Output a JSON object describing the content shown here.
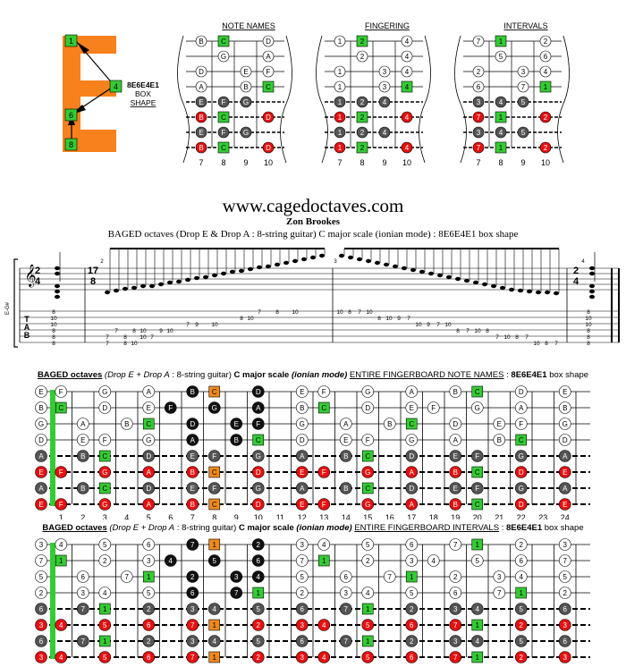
{
  "shape_labels": {
    "name": "8E6E4E1",
    "line2": "BOX",
    "line3": "SHAPE",
    "nodes": [
      "1",
      "4",
      "6",
      "8"
    ]
  },
  "diagram_titles": {
    "notes": "NOTE NAMES",
    "fingering": "FINGERING",
    "intervals": "INTERVALS"
  },
  "fret_labels": [
    "7",
    "8",
    "9",
    "10"
  ],
  "box_grids": {
    "notes": [
      [
        "B",
        "C",
        "",
        "D"
      ],
      [
        "",
        "G",
        "",
        "A"
      ],
      [
        "D",
        "",
        "E",
        "F"
      ],
      [
        "A",
        "",
        "B",
        "C"
      ],
      [
        "E",
        "F",
        "G",
        ""
      ],
      [
        "B",
        "C",
        "",
        "D"
      ],
      [
        "E",
        "F",
        "G",
        ""
      ],
      [
        "B",
        "C",
        "",
        "D"
      ]
    ],
    "fingering": [
      [
        "1",
        "2",
        "",
        "4"
      ],
      [
        "",
        "2",
        "",
        "4"
      ],
      [
        "1",
        "",
        "3",
        "4"
      ],
      [
        "1",
        "",
        "3",
        "4"
      ],
      [
        "1",
        "2",
        "4",
        ""
      ],
      [
        "1",
        "2",
        "",
        "4"
      ],
      [
        "1",
        "2",
        "4",
        ""
      ],
      [
        "1",
        "2",
        "",
        "4"
      ]
    ],
    "intervals": [
      [
        "7",
        "1",
        "",
        "2"
      ],
      [
        "",
        "5",
        "",
        "6"
      ],
      [
        "2",
        "",
        "3",
        "4"
      ],
      [
        "6",
        "",
        "7",
        "1"
      ],
      [
        "3",
        "4",
        "5",
        ""
      ],
      [
        "7",
        "1",
        "",
        "2"
      ],
      [
        "3",
        "4",
        "5",
        ""
      ],
      [
        "7",
        "1",
        "",
        "2"
      ]
    ]
  },
  "header": {
    "url": "www.cagedoctaves.com",
    "author": "Zon Brookes",
    "subtitle": "BAGED octaves (Drop E & Drop A : 8-string guitar) C major scale (ionian mode) : 8E6E4E1 box shape"
  },
  "score": {
    "time_sig_start": [
      "2",
      "4"
    ],
    "time_sig_mid": [
      "17",
      "8"
    ],
    "time_sig_end": [
      "2",
      "4"
    ],
    "tuning_label": "E-G#",
    "tab_letters": [
      "T",
      "A",
      "B"
    ],
    "measure_numbers": [
      "2",
      "3",
      "4"
    ],
    "tab_texts": [
      [
        "8",
        "10",
        "10",
        "8",
        "8",
        "8"
      ],
      [
        "7",
        "8",
        "10",
        "7",
        "8",
        "10",
        "7",
        "8",
        "10",
        "7",
        "9",
        "10",
        "7",
        "9",
        "10",
        "8",
        "10",
        "7",
        "8",
        "10"
      ],
      [
        "10",
        "8",
        "7",
        "10",
        "8",
        "10",
        "9",
        "7",
        "10",
        "9",
        "7",
        "10",
        "8",
        "7",
        "10",
        "8",
        "7",
        "10",
        "8",
        "7",
        "10",
        "8",
        "7"
      ],
      [
        "8",
        "10",
        "10",
        "8",
        "8",
        "8"
      ]
    ]
  },
  "board1_title": {
    "prefix": "BAGED octaves",
    "italic": "(Drop E + Drop A",
    "mid": ": 8-string guitar)",
    "bold2": "C major scale",
    "mode": "(ionian mode)",
    "underlined": "ENTIRE FINGERBOARD  NOTE NAMES",
    "sep": ":",
    "shape": "8E6E4E1",
    "tail": "box shape"
  },
  "board2_title": {
    "prefix": "BAGED octaves",
    "italic": "(Drop E + Drop A",
    "mid": ": 8-string guitar)",
    "bold2": "C major scale",
    "mode": "(ionian mode)",
    "underlined": "ENTIRE FINGERBOARD INTERVALS",
    "sep": ":",
    "shape": "8E6E4E1",
    "tail": "box shape"
  },
  "fret_numbers": [
    "1",
    "2",
    "3",
    "4",
    "5",
    "6",
    "7",
    "8",
    "9",
    "10",
    "11",
    "12",
    "13",
    "14",
    "15",
    "16",
    "17",
    "18",
    "19",
    "20",
    "21",
    "22",
    "23",
    "24"
  ],
  "fingerboard_notes": [
    [
      "E",
      "F",
      "",
      "G",
      "",
      "A",
      "",
      "B",
      "C",
      "",
      "D",
      "",
      "E",
      "F",
      "",
      "G",
      "",
      "A",
      "",
      "B",
      "C",
      "",
      "D",
      "",
      "E"
    ],
    [
      "B",
      "C",
      "",
      "D",
      "",
      "E",
      "F",
      "",
      "G",
      "",
      "A",
      "",
      "B",
      "C",
      "",
      "D",
      "",
      "E",
      "F",
      "",
      "G",
      "",
      "A",
      "",
      "B"
    ],
    [
      "G",
      "",
      "A",
      "",
      "B",
      "C",
      "",
      "D",
      "",
      "E",
      "F",
      "",
      "G",
      "",
      "A",
      "",
      "B",
      "C",
      "",
      "D",
      "",
      "E",
      "F",
      "",
      "G"
    ],
    [
      "D",
      "",
      "E",
      "F",
      "",
      "G",
      "",
      "A",
      "",
      "B",
      "C",
      "",
      "D",
      "",
      "E",
      "F",
      "",
      "G",
      "",
      "A",
      "",
      "B",
      "C",
      "",
      "D"
    ],
    [
      "A",
      "",
      "B",
      "C",
      "",
      "D",
      "",
      "E",
      "F",
      "",
      "G",
      "",
      "A",
      "",
      "B",
      "C",
      "",
      "D",
      "",
      "E",
      "F",
      "",
      "G",
      "",
      "A"
    ],
    [
      "E",
      "F",
      "",
      "G",
      "",
      "A",
      "",
      "B",
      "C",
      "",
      "D",
      "",
      "E",
      "F",
      "",
      "G",
      "",
      "A",
      "",
      "B",
      "C",
      "",
      "D",
      "",
      "E"
    ],
    [
      "A",
      "",
      "B",
      "C",
      "",
      "D",
      "",
      "E",
      "F",
      "",
      "G",
      "",
      "A",
      "",
      "B",
      "C",
      "",
      "D",
      "",
      "E",
      "F",
      "",
      "G",
      "",
      "A"
    ],
    [
      "E",
      "F",
      "",
      "G",
      "",
      "A",
      "",
      "B",
      "C",
      "",
      "D",
      "",
      "E",
      "F",
      "",
      "G",
      "",
      "A",
      "",
      "B",
      "C",
      "",
      "D",
      "",
      "E"
    ]
  ],
  "fingerboard_intervals": [
    [
      "3",
      "4",
      "",
      "5",
      "",
      "6",
      "",
      "7",
      "1",
      "",
      "2",
      "",
      "3",
      "4",
      "",
      "5",
      "",
      "6",
      "",
      "7",
      "1",
      "",
      "2",
      "",
      "3"
    ],
    [
      "7",
      "1",
      "",
      "2",
      "",
      "3",
      "4",
      "",
      "5",
      "",
      "6",
      "",
      "7",
      "1",
      "",
      "2",
      "",
      "3",
      "4",
      "",
      "5",
      "",
      "6",
      "",
      "7"
    ],
    [
      "5",
      "",
      "6",
      "",
      "7",
      "1",
      "",
      "2",
      "",
      "3",
      "4",
      "",
      "5",
      "",
      "6",
      "",
      "7",
      "1",
      "",
      "2",
      "",
      "3",
      "4",
      "",
      "5"
    ],
    [
      "2",
      "",
      "3",
      "4",
      "",
      "5",
      "",
      "6",
      "",
      "7",
      "1",
      "",
      "2",
      "",
      "3",
      "4",
      "",
      "5",
      "",
      "6",
      "",
      "7",
      "1",
      "",
      "2"
    ],
    [
      "6",
      "",
      "7",
      "1",
      "",
      "2",
      "",
      "3",
      "4",
      "",
      "5",
      "",
      "6",
      "",
      "7",
      "1",
      "",
      "2",
      "",
      "3",
      "4",
      "",
      "5",
      "",
      "6"
    ],
    [
      "3",
      "4",
      "",
      "5",
      "",
      "6",
      "",
      "7",
      "1",
      "",
      "2",
      "",
      "3",
      "4",
      "",
      "5",
      "",
      "6",
      "",
      "7",
      "1",
      "",
      "2",
      "",
      "3"
    ],
    [
      "6",
      "",
      "7",
      "1",
      "",
      "2",
      "",
      "3",
      "4",
      "",
      "5",
      "",
      "6",
      "",
      "7",
      "1",
      "",
      "2",
      "",
      "3",
      "4",
      "",
      "5",
      "",
      "6"
    ],
    [
      "3",
      "4",
      "",
      "5",
      "",
      "6",
      "",
      "7",
      "1",
      "",
      "2",
      "",
      "3",
      "4",
      "",
      "5",
      "",
      "6",
      "",
      "7",
      "1",
      "",
      "2",
      "",
      "3"
    ]
  ],
  "colors": {
    "green": "#33cc33",
    "red": "#e81010",
    "orange": "#f08a1c",
    "gray": "#555555",
    "black": "#111111",
    "shape_orange": "#f7811c"
  }
}
